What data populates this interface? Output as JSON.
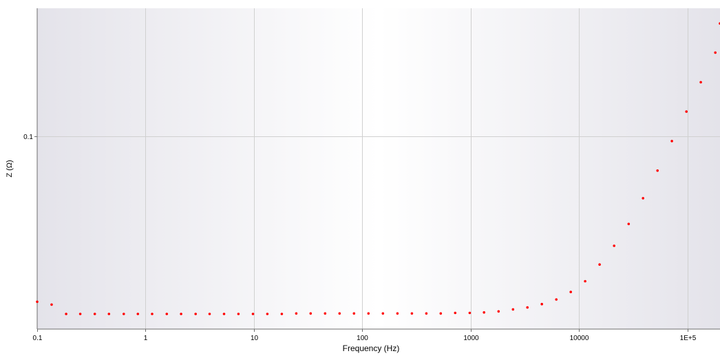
{
  "chart_data": {
    "type": "scatter",
    "xlabel": "Frequency (Hz)",
    "ylabel": "Z (Ω)",
    "x_scale": "log",
    "y_scale": "log",
    "xlim": [
      0.1,
      200000
    ],
    "ylim": [
      0.0225,
      0.27
    ],
    "x_ticks": [
      {
        "value": 0.1,
        "label": "0.1"
      },
      {
        "value": 1,
        "label": "1"
      },
      {
        "value": 10,
        "label": "10"
      },
      {
        "value": 100,
        "label": "100"
      },
      {
        "value": 1000,
        "label": "1000"
      },
      {
        "value": 10000,
        "label": "10000"
      },
      {
        "value": 100000,
        "label": "1E+5"
      }
    ],
    "y_ticks": [
      {
        "value": 0.1,
        "label": "0.1"
      }
    ],
    "grid": true,
    "colors": {
      "marker": "#ff0000",
      "grid": "#d0d0d0",
      "axis": "#6e6e6e",
      "plot_edge": "#e4e3ea",
      "plot_center": "#ffffff"
    },
    "series": [
      {
        "x": [
          0.1,
          0.136,
          0.185,
          0.25,
          0.34,
          0.46,
          0.63,
          0.85,
          1.15,
          1.57,
          2.13,
          2.9,
          3.9,
          5.3,
          7.2,
          9.8,
          13.3,
          18.1,
          24.6,
          33.4,
          45.4,
          61.7,
          83.9,
          114,
          155,
          211,
          287,
          390,
          530,
          720,
          980,
          1330,
          1810,
          2460,
          3340,
          4540,
          6170,
          8390,
          11400,
          15500,
          21100,
          28700,
          39000,
          53000,
          72000,
          98000,
          133000,
          181000,
          200000
        ],
        "y": [
          0.0278,
          0.0272,
          0.0253,
          0.0253,
          0.0253,
          0.0253,
          0.0253,
          0.0253,
          0.0253,
          0.0253,
          0.0253,
          0.0253,
          0.0253,
          0.0253,
          0.0253,
          0.0253,
          0.0253,
          0.0253,
          0.0254,
          0.0254,
          0.0254,
          0.0254,
          0.0254,
          0.0254,
          0.0254,
          0.0254,
          0.0254,
          0.0254,
          0.0254,
          0.0255,
          0.0255,
          0.0256,
          0.0258,
          0.0262,
          0.0266,
          0.0273,
          0.0283,
          0.03,
          0.0326,
          0.0371,
          0.0429,
          0.0508,
          0.062,
          0.0768,
          0.0965,
          0.1213,
          0.1523,
          0.1915,
          0.24
        ]
      }
    ]
  }
}
